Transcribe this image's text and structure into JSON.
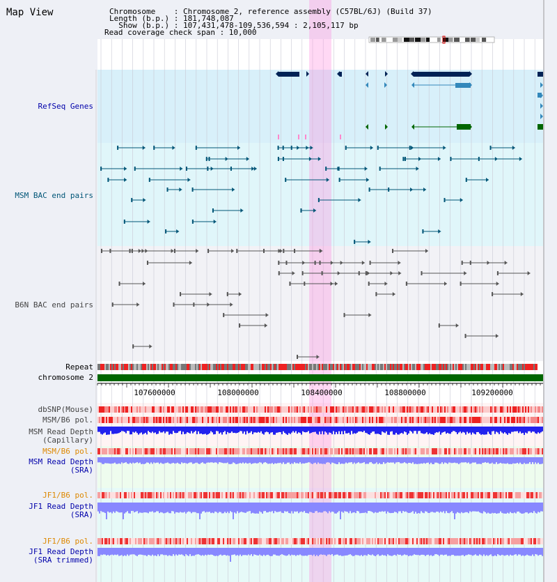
{
  "map_title": "Map View",
  "info": {
    "chromosome_line": "Chromosome    : Chromosome 2, reference assembly (C57BL/6J) (Build 37)",
    "length_line": "Length (b.p.) : 181,748,087",
    "show_line": "  Show (b.p.) : 107,431,478-109,536,594 : 2,105,117 bp",
    "span_line": "Read coverage check span : 10,000"
  },
  "tracks": {
    "refseq": "RefSeq Genes",
    "msm_bac": "MSM BAC end pairs",
    "b6n_bac": "B6N BAC end pairs",
    "repeat": "Repeat",
    "chromosome": "chromosome 2",
    "dbsnp": "dbSNP(Mouse)",
    "msm_b6_pol": "MSM/B6 pol.",
    "msm_depth_cap_1": "MSM Read Depth",
    "msm_depth_cap_2": "(Capillary)",
    "msm_b6_pol_2": "MSM/B6 pol.",
    "msm_depth_sra_1": "MSM Read Depth",
    "msm_depth_sra_2": "(SRA)",
    "jf1_b6_pol": "JF1/B6 pol.",
    "jf1_depth_sra_1": "JF1 Read Depth",
    "jf1_depth_sra_2": "(SRA)",
    "jf1_b6_pol_2": "JF1/B6 pol.",
    "jf1_depth_trim_1": "JF1 Read Depth",
    "jf1_depth_trim_2": "(SRA trimmed)"
  },
  "axis": [
    "107600000",
    "108000000",
    "108400000",
    "108800000",
    "109200000"
  ],
  "colors": {
    "refseq_label": "#0000aa",
    "msm_label": "#005577",
    "b6n_label": "#444444",
    "pol_label": "#dd8800",
    "depth_label": "#0000aa",
    "highlight": "#ff88dd",
    "gene_dark": "#002255",
    "gene_mid": "#3388bb",
    "gene_green": "#006600",
    "bac_msm": "#005577",
    "bac_b6n": "#555555",
    "chrom_green": "#006600",
    "depth_blue": "#2222ee",
    "depth_light": "#8888ff"
  }
}
